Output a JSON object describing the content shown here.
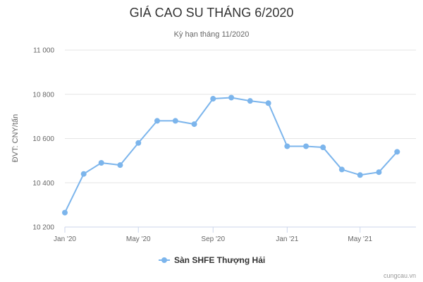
{
  "chart_data": {
    "type": "line",
    "title": "GIÁ CAO SU THÁNG 6/2020",
    "subtitle": "Kỳ hạn tháng 11/2020",
    "ylabel": "ĐVT: CNY/tấn",
    "xlabel": "",
    "ylim": [
      10200,
      11000
    ],
    "y_ticks": [
      10200,
      10400,
      10600,
      10800,
      11000
    ],
    "y_tick_labels": [
      "10 200",
      "10 400",
      "10 600",
      "10 800",
      "11 000"
    ],
    "x_range": [
      "2020-01-01",
      "2021-08-01"
    ],
    "x_ticks": [
      "2020-01-01",
      "2020-05-01",
      "2020-09-01",
      "2021-01-01",
      "2021-05-01"
    ],
    "x_tick_labels": [
      "Jan '20",
      "May '20",
      "Sep '20",
      "Jan '21",
      "May '21"
    ],
    "grid": true,
    "legend_position": "bottom-center",
    "series": [
      {
        "name": "Sàn SHFE Thượng Hải",
        "color": "#7cb5ec",
        "points": [
          {
            "x": "2020-01-01",
            "y": 10265
          },
          {
            "x": "2020-02-01",
            "y": 10440
          },
          {
            "x": "2020-03-01",
            "y": 10490
          },
          {
            "x": "2020-04-01",
            "y": 10480
          },
          {
            "x": "2020-05-01",
            "y": 10580
          },
          {
            "x": "2020-06-01",
            "y": 10680
          },
          {
            "x": "2020-07-01",
            "y": 10680
          },
          {
            "x": "2020-08-01",
            "y": 10665
          },
          {
            "x": "2020-09-01",
            "y": 10780
          },
          {
            "x": "2020-10-01",
            "y": 10785
          },
          {
            "x": "2020-11-01",
            "y": 10770
          },
          {
            "x": "2020-12-01",
            "y": 10760
          },
          {
            "x": "2021-01-01",
            "y": 10565
          },
          {
            "x": "2021-02-01",
            "y": 10565
          },
          {
            "x": "2021-03-01",
            "y": 10560
          },
          {
            "x": "2021-04-01",
            "y": 10460
          },
          {
            "x": "2021-05-01",
            "y": 10435
          },
          {
            "x": "2021-06-01",
            "y": 10448
          },
          {
            "x": "2021-07-01",
            "y": 10540
          }
        ]
      }
    ]
  },
  "credit": "cungcau.vn"
}
